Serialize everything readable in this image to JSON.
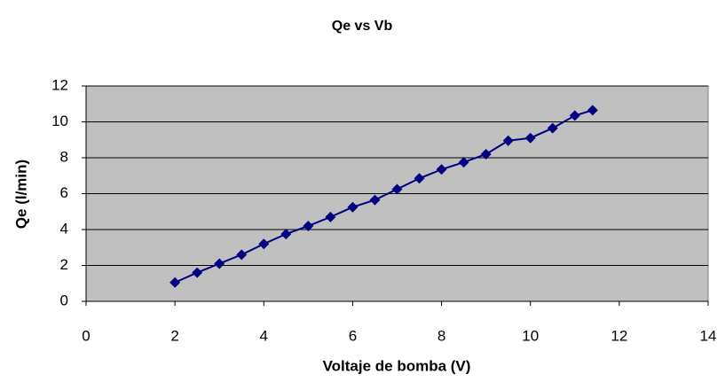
{
  "chart_data": {
    "type": "scatter",
    "title": "Qe vs Vb",
    "x_label": "Voltaje de bomba (V)",
    "y_label": "Qe (l/min)",
    "x": [
      2,
      2.5,
      3,
      3.5,
      4,
      4.5,
      5,
      5.5,
      6,
      6.5,
      7,
      7.5,
      8,
      8.5,
      9,
      9.5,
      10,
      10.5,
      11,
      11.4
    ],
    "values": [
      1.05,
      1.6,
      2.1,
      2.6,
      3.2,
      3.75,
      4.2,
      4.7,
      5.25,
      5.65,
      6.25,
      6.85,
      7.35,
      7.75,
      8.2,
      8.95,
      9.1,
      9.65,
      10.35,
      10.65
    ],
    "color": "#000080",
    "xlim": [
      0,
      14
    ],
    "xticks": [
      0,
      2,
      4,
      6,
      8,
      10,
      12,
      14
    ],
    "ylim": [
      0,
      12
    ],
    "yticks": [
      0,
      2,
      4,
      6,
      8,
      10,
      12
    ],
    "grid": true,
    "lines": true
  }
}
